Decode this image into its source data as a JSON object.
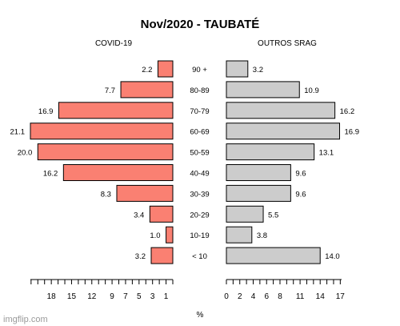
{
  "chart_data": {
    "type": "bar",
    "title": "Nov/2020 - TAUBATÉ",
    "categories": [
      "90 +",
      "80-89",
      "70-79",
      "60-69",
      "50-59",
      "40-49",
      "30-39",
      "20-29",
      "10-19",
      "< 10"
    ],
    "series": [
      {
        "name": "COVID-19",
        "values": [
          2.2,
          7.7,
          16.9,
          21.1,
          20.0,
          16.2,
          8.3,
          3.4,
          1.0,
          3.2
        ],
        "labels": [
          "2.2",
          "7.7",
          "16.9",
          "21.1",
          "20.0",
          "16.2",
          "8.3",
          "3.4",
          "1.0",
          "3.2"
        ],
        "color": "#fa8072",
        "axis_ticks": [
          18,
          15,
          12,
          9,
          7,
          5,
          3,
          1
        ],
        "axis_max": 21.1
      },
      {
        "name": "OUTROS SRAG",
        "values": [
          3.2,
          10.9,
          16.2,
          16.9,
          13.1,
          9.6,
          9.6,
          5.5,
          3.8,
          14.0
        ],
        "labels": [
          "3.2",
          "10.9",
          "16.2",
          "16.9",
          "13.1",
          "9.6",
          "9.6",
          "5.5",
          "3.8",
          "14.0"
        ],
        "color": "#cccccc",
        "axis_ticks": [
          0,
          2,
          4,
          6,
          8,
          11,
          14,
          17
        ],
        "axis_max": 17.2
      }
    ],
    "xlabel": "%",
    "legend": "none",
    "grid": false
  },
  "watermark": "imgflip.com"
}
